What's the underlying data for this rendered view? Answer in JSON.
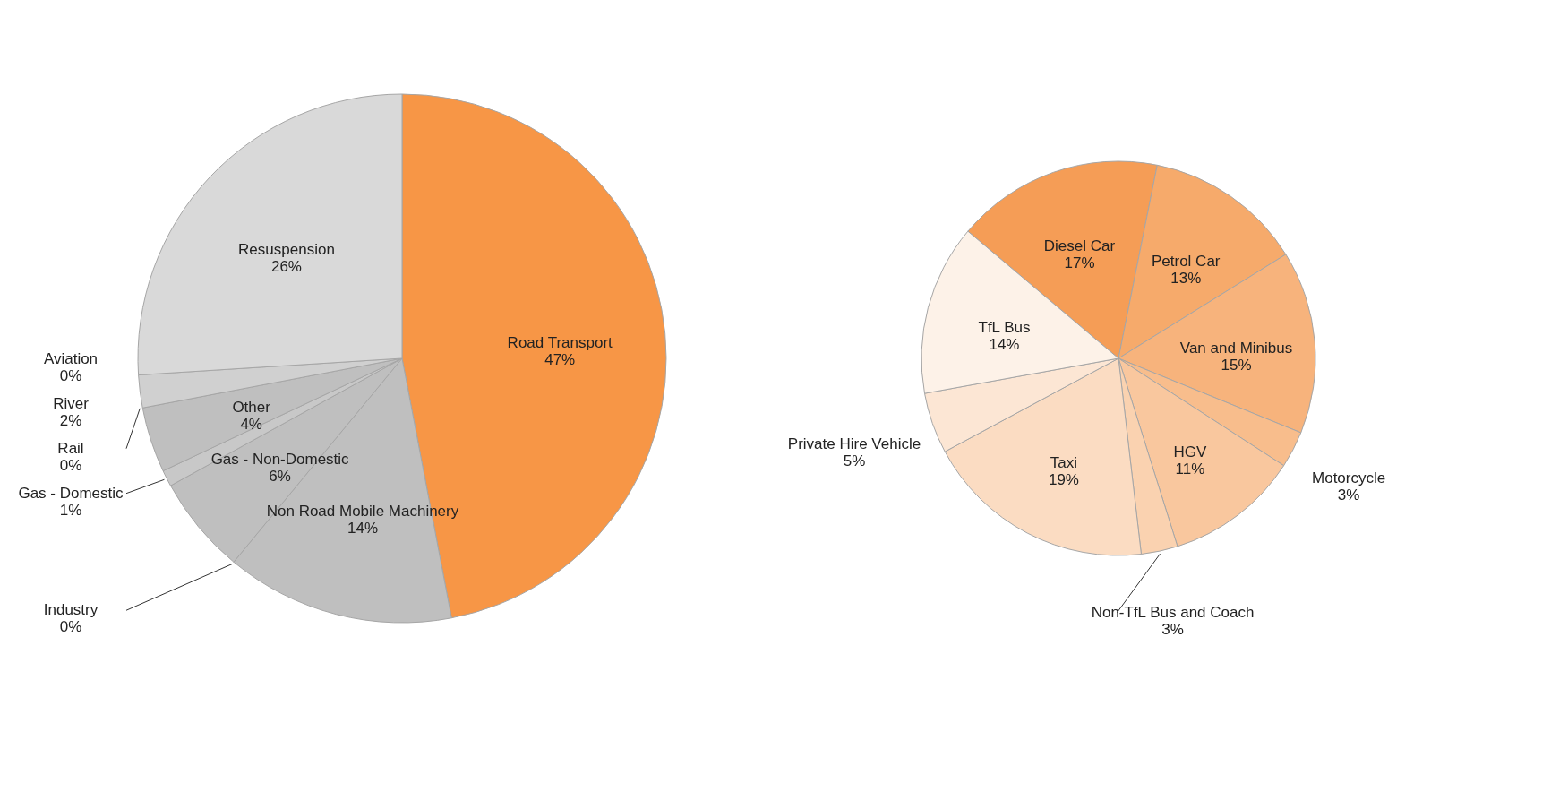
{
  "chart_data": [
    {
      "type": "pie",
      "categories": [
        "Road Transport",
        "Non Road Mobile Machinery",
        "Industry",
        "Gas - Non-Domestic",
        "Gas - Domestic",
        "Other",
        "Rail",
        "River",
        "Aviation",
        "Resuspension"
      ],
      "values": [
        47,
        14,
        0,
        6,
        1,
        4,
        0,
        2,
        0,
        26
      ],
      "colors": [
        "#f79646",
        "#bfbfbf",
        "#c4c4c4",
        "#bfbfbf",
        "#c8c8c8",
        "#bfbfbf",
        "#cccccc",
        "#d0d0d0",
        "#d6d6d6",
        "#d9d9d9"
      ],
      "value_labels": [
        "47%",
        "14%",
        "0%",
        "6%",
        "1%",
        "4%",
        "0%",
        "2%",
        "0%",
        "26%"
      ]
    },
    {
      "type": "pie",
      "categories": [
        "Diesel Car",
        "Petrol Car",
        "Van and Minibus",
        "Motorcycle",
        "HGV",
        "Non-TfL Bus and Coach",
        "Taxi",
        "Private Hire Vehicle",
        "TfL Bus"
      ],
      "values": [
        17,
        13,
        15,
        3,
        11,
        3,
        19,
        5,
        14
      ],
      "colors": [
        "#f59d56",
        "#f6aa6b",
        "#f7b37c",
        "#f8bd8c",
        "#f9c79e",
        "#fad2b0",
        "#fbdcc2",
        "#fce6d4",
        "#fdf2e8"
      ],
      "value_labels": [
        "17%",
        "13%",
        "15%",
        "3%",
        "11%",
        "3%",
        "19%",
        "5%",
        "14%"
      ]
    }
  ]
}
